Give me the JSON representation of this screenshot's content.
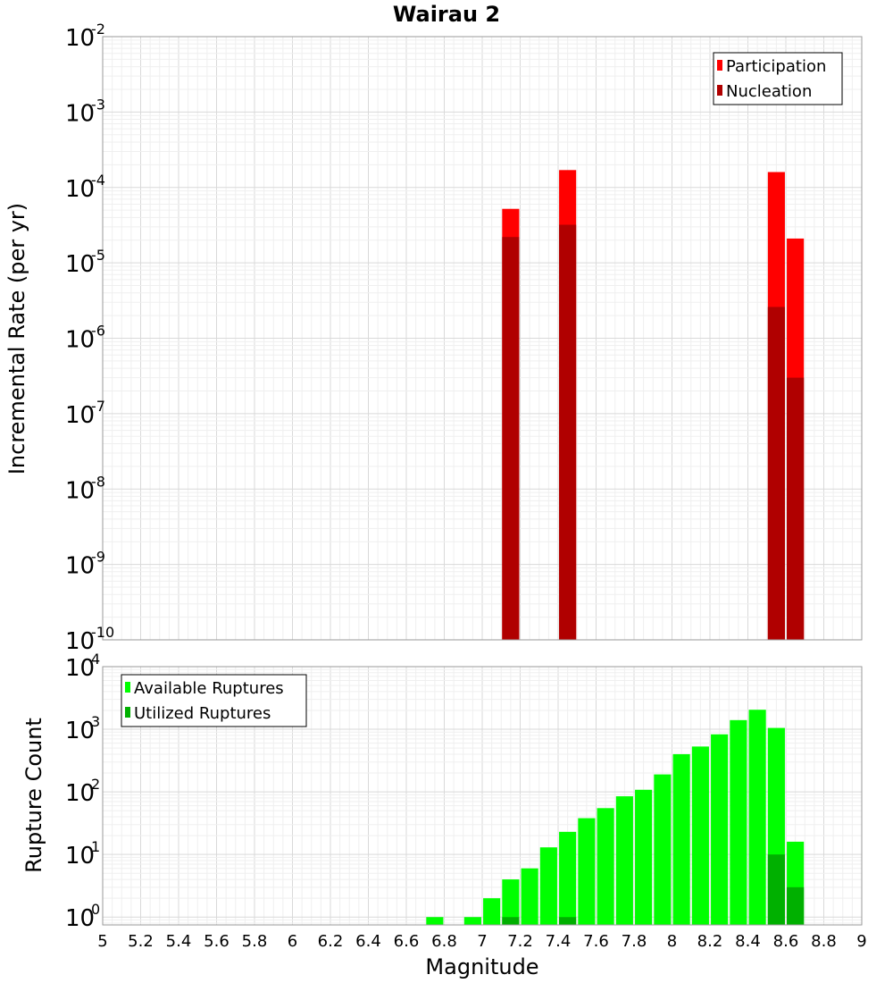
{
  "chart_data": [
    {
      "type": "bar",
      "title": "Wairau 2",
      "xlabel": "",
      "ylabel": "Incremental Rate (per yr)",
      "yscale": "log",
      "ylim": [
        1e-10,
        0.01
      ],
      "xlim": [
        5,
        9
      ],
      "grid": true,
      "legend_position": "top-right",
      "ytick_exponents": [
        -10,
        -9,
        -8,
        -7,
        -6,
        -5,
        -4,
        -3,
        -2
      ],
      "series": [
        {
          "name": "Participation",
          "color": "#ff0000",
          "x": [
            7.15,
            7.45,
            8.55,
            8.65
          ],
          "values": [
            5.2e-05,
            0.00017,
            0.00016,
            2.1e-05
          ]
        },
        {
          "name": "Nucleation",
          "color": "#b00000",
          "x": [
            7.15,
            7.45,
            8.55,
            8.65
          ],
          "values": [
            2.2e-05,
            3.2e-05,
            2.6e-06,
            3e-07
          ]
        }
      ]
    },
    {
      "type": "bar",
      "title": "",
      "xlabel": "Magnitude",
      "ylabel": "Rupture Count",
      "yscale": "log",
      "ylim": [
        0.75,
        10000
      ],
      "xlim": [
        5,
        9
      ],
      "grid": true,
      "legend_position": "top-left",
      "ytick_exponents": [
        0,
        1,
        2,
        3,
        4
      ],
      "xticks": [
        "5",
        "5.2",
        "5.4",
        "5.6",
        "5.8",
        "6",
        "6.2",
        "6.4",
        "6.6",
        "6.8",
        "7",
        "7.2",
        "7.4",
        "7.6",
        "7.8",
        "8",
        "8.2",
        "8.4",
        "8.6",
        "8.8",
        "9"
      ],
      "series": [
        {
          "name": "Available Ruptures",
          "color": "#00ff00",
          "x": [
            6.75,
            6.95,
            7.05,
            7.15,
            7.25,
            7.35,
            7.45,
            7.55,
            7.65,
            7.75,
            7.85,
            7.95,
            8.05,
            8.15,
            8.25,
            8.35,
            8.45,
            8.55,
            8.65
          ],
          "values": [
            1,
            1,
            2,
            4,
            6,
            13,
            23,
            38,
            55,
            85,
            108,
            190,
            400,
            530,
            830,
            1400,
            2050,
            1050,
            16
          ]
        },
        {
          "name": "Utilized Ruptures",
          "color": "#00b000",
          "x": [
            7.15,
            7.45,
            8.55,
            8.65
          ],
          "values": [
            1,
            1,
            10,
            3
          ]
        }
      ]
    }
  ]
}
